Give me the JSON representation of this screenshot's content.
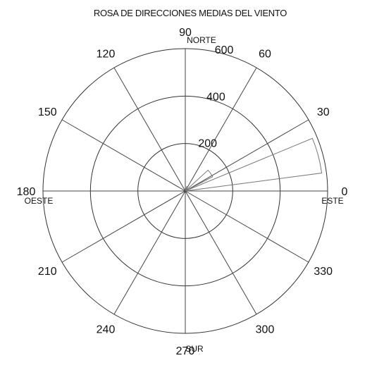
{
  "chart_data": {
    "type": "polar-rose",
    "title": "ROSA DE DIRECCIONES MEDIAS DEL VIENTO",
    "angle_ticks": [
      "0",
      "30",
      "60",
      "90",
      "120",
      "150",
      "180",
      "210",
      "240",
      "270",
      "300",
      "330"
    ],
    "angle_tick_degrees": [
      0,
      30,
      60,
      90,
      120,
      150,
      180,
      210,
      240,
      270,
      300,
      330
    ],
    "radial_ticks": [
      "200",
      "400",
      "600"
    ],
    "radial_tick_values": [
      200,
      400,
      600
    ],
    "rmax": 600,
    "direction_labels": {
      "north": "NORTE",
      "south": "SUR",
      "east": "ESTE",
      "west": "OESTE"
    },
    "sectors": [
      {
        "direction_deg": 15,
        "value": 580
      },
      {
        "direction_deg": 35,
        "value": 130
      },
      {
        "direction_deg": 65,
        "value": 20
      }
    ],
    "sector_half_width_deg": 7.5
  }
}
